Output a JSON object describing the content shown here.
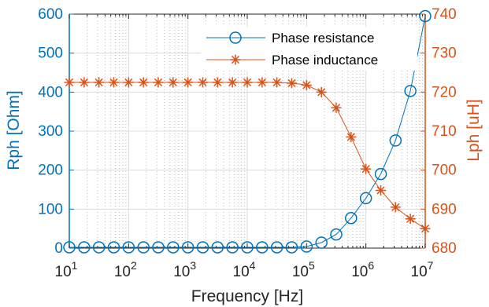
{
  "chart_data": {
    "type": "line",
    "xscale": "log",
    "xlabel": "Frequency [Hz]",
    "ylabel_left": "Rph [Ohm]",
    "ylabel_right": "Lph [uH]",
    "xlim": [
      10,
      10000000
    ],
    "ylim_left": [
      0,
      600
    ],
    "ylim_right": [
      680,
      740
    ],
    "x_tick_values": [
      10,
      100,
      1000,
      10000,
      100000,
      1000000,
      10000000
    ],
    "x_tick_bases": [
      "10",
      "10",
      "10",
      "10",
      "10",
      "10",
      "10"
    ],
    "x_tick_exponents": [
      "1",
      "2",
      "3",
      "4",
      "5",
      "6",
      "7"
    ],
    "y_left_ticks": [
      "0",
      "100",
      "200",
      "300",
      "400",
      "500",
      "600"
    ],
    "y_right_ticks": [
      "680",
      "690",
      "700",
      "710",
      "720",
      "730",
      "740"
    ],
    "grid": true,
    "legend_position": "top-right",
    "x": [
      10,
      17.8,
      31.6,
      56.2,
      100,
      178,
      316,
      562,
      1000,
      1780,
      3160,
      5620,
      10000,
      17800,
      31600,
      56200,
      100000,
      178000,
      316000,
      562000,
      1000000,
      1780000,
      3160000,
      5620000,
      10000000
    ],
    "series": [
      {
        "name": "Phase resistance",
        "axis": "left",
        "color": "#0072BD",
        "marker": "circle",
        "values": [
          2,
          2,
          2,
          2,
          2,
          2,
          2,
          2,
          2,
          2,
          2,
          2,
          2,
          2,
          2,
          2,
          4,
          14,
          35,
          77,
          128,
          190,
          276,
          403,
          595
        ]
      },
      {
        "name": "Phase inductance",
        "axis": "right",
        "color": "#D95319",
        "marker": "asterisk",
        "values": [
          722.5,
          722.5,
          722.5,
          722.5,
          722.5,
          722.5,
          722.5,
          722.5,
          722.5,
          722.5,
          722.5,
          722.5,
          722.5,
          722.5,
          722.5,
          722.3,
          721.8,
          720,
          716,
          708.5,
          700.3,
          694.8,
          690.5,
          687.5,
          685
        ]
      }
    ]
  }
}
